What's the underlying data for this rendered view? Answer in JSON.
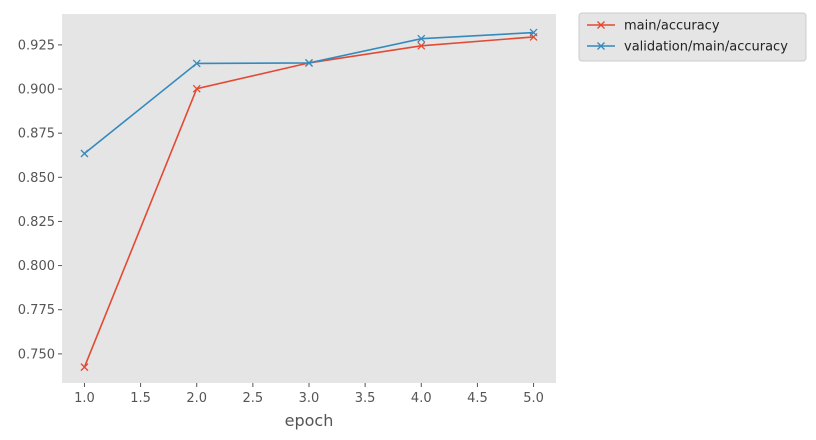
{
  "chart_data": {
    "type": "line",
    "title": "",
    "xlabel": "epoch",
    "ylabel": "",
    "xlim": [
      0.8,
      5.2
    ],
    "ylim": [
      0.7335,
      0.9425
    ],
    "x_ticks": [
      1.0,
      1.5,
      2.0,
      2.5,
      3.0,
      3.5,
      4.0,
      4.5,
      5.0
    ],
    "x_tick_labels": [
      "1.0",
      "1.5",
      "2.0",
      "2.5",
      "3.0",
      "3.5",
      "4.0",
      "4.5",
      "5.0"
    ],
    "y_ticks": [
      0.75,
      0.775,
      0.8,
      0.825,
      0.85,
      0.875,
      0.9,
      0.925
    ],
    "y_tick_labels": [
      "0.750",
      "0.775",
      "0.800",
      "0.825",
      "0.850",
      "0.875",
      "0.900",
      "0.925"
    ],
    "grid": false,
    "background": "#e5e5e5",
    "legend_position": "outside-top-right",
    "marker": "x",
    "x": [
      1,
      2,
      3,
      4,
      5
    ],
    "series": [
      {
        "name": "main/accuracy",
        "color": "#e24a33",
        "values": [
          0.7425,
          0.9002,
          0.9148,
          0.9245,
          0.9295
        ]
      },
      {
        "name": "validation/main/accuracy",
        "color": "#348abd",
        "values": [
          0.8635,
          0.9145,
          0.9148,
          0.9285,
          0.932
        ]
      }
    ]
  }
}
